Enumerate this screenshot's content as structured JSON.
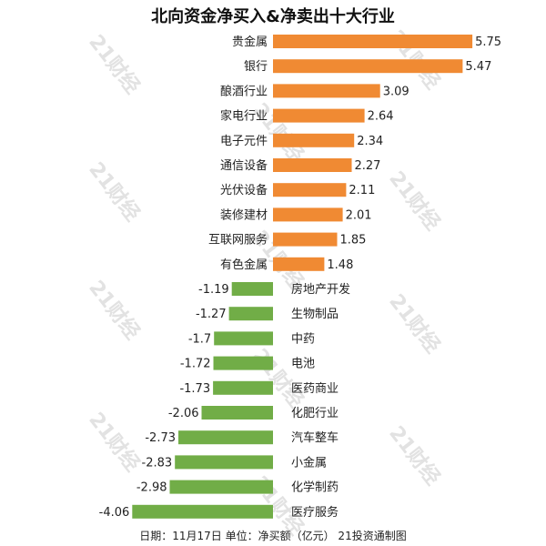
{
  "title": "北向资金净买入&净卖出十大行业",
  "footer": "日期：11月17日 单位：净买额（亿元） 21投资通制图",
  "watermark": "21财经",
  "colors": {
    "positive": "#f08a33",
    "negative": "#71ad47",
    "label": "#222222"
  },
  "chart_data": {
    "type": "bar",
    "orientation": "horizontal",
    "title": "北向资金净买入&净卖出十大行业",
    "categories": [
      "贵金属",
      "银行",
      "酿酒行业",
      "家电行业",
      "电子元件",
      "通信设备",
      "光伏设备",
      "装修建材",
      "互联网服务",
      "有色金属",
      "房地产开发",
      "生物制品",
      "中药",
      "电池",
      "医药商业",
      "化肥行业",
      "汽车整车",
      "小金属",
      "化学制药",
      "医疗服务"
    ],
    "values": [
      5.75,
      5.47,
      3.09,
      2.64,
      2.34,
      2.27,
      2.11,
      2.01,
      1.85,
      1.48,
      -1.19,
      -1.27,
      -1.7,
      -1.72,
      -1.73,
      -2.06,
      -2.73,
      -2.83,
      -2.98,
      -4.06
    ],
    "value_labels": [
      "5.75",
      "5.47",
      "3.09",
      "2.64",
      "2.34",
      "2.27",
      "2.11",
      "2.01",
      "1.85",
      "1.48",
      "-1.19",
      "-1.27",
      "-1.7",
      "-1.72",
      "-1.73",
      "-2.06",
      "-2.73",
      "-2.83",
      "-2.98",
      "-4.06"
    ],
    "unit": "亿元",
    "grid": false,
    "legend": "none"
  }
}
